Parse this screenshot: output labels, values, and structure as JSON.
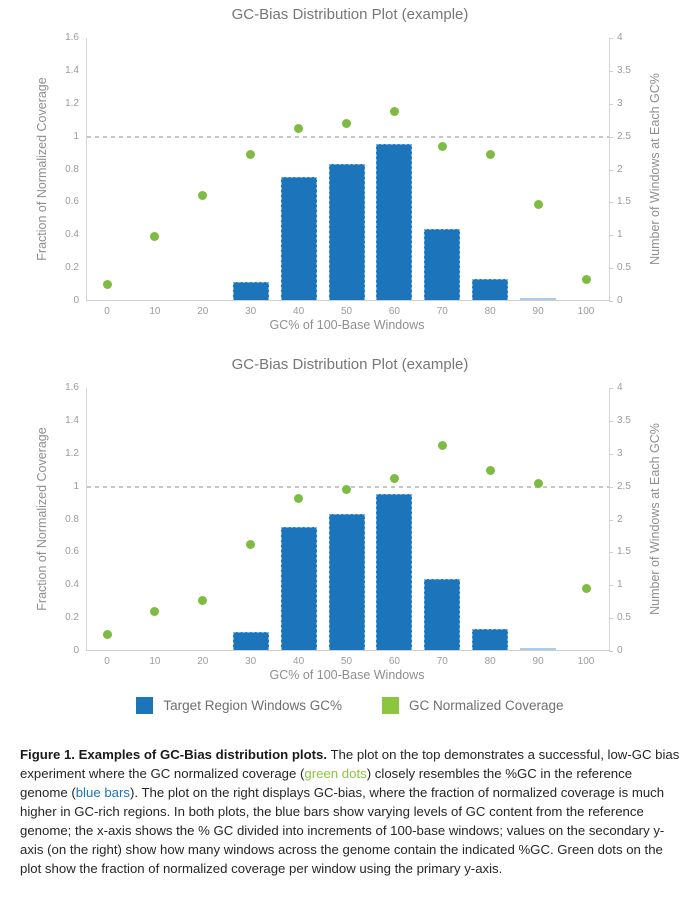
{
  "colors": {
    "bar_blue": "#1c74bb",
    "bar_light_blue": "#a9cdea",
    "bar_border": "#7fb3de",
    "dot_green": "#7ebb42",
    "legend_blue": "#1c74bb",
    "legend_green": "#8cc63f",
    "refline_gray": "#c6c6c6"
  },
  "chart_data": [
    {
      "type": "bar+scatter",
      "title": "GC-Bias Distribution Plot (example)",
      "xlabel": "GC% of 100-Base Windows",
      "ylabel_left": "Fraction of Normalized Coverage",
      "ylabel_right": "Number of Windows at Each GC%",
      "categories": [
        0,
        10,
        20,
        30,
        40,
        50,
        60,
        70,
        80,
        90,
        100
      ],
      "ylim_left": [
        0,
        1.6
      ],
      "ylim_right": [
        0,
        4
      ],
      "yticks_left": [
        "0",
        "0.2",
        "0.4",
        "0.6",
        "0.8",
        "1",
        "1.2",
        "1.4",
        "1.6"
      ],
      "yticks_right": [
        "0",
        "0.5",
        "1",
        "1.5",
        "2",
        "2.5",
        "3",
        "3.5",
        "4"
      ],
      "refline_left": 1.0,
      "grid": false,
      "series": [
        {
          "name": "Target Region Windows GC%",
          "type": "bar",
          "axis": "left",
          "values": [
            0,
            0,
            0,
            0.11,
            0.75,
            0.83,
            0.95,
            0.43,
            0.13,
            0.01,
            0
          ],
          "point_colors": {
            "9": "#a9cdea"
          }
        },
        {
          "name": "GC Normalized Coverage",
          "type": "scatter",
          "axis": "left",
          "values": [
            0.1,
            0.39,
            0.64,
            0.89,
            1.05,
            1.08,
            1.15,
            0.94,
            0.89,
            0.59,
            0.13
          ]
        }
      ]
    },
    {
      "type": "bar+scatter",
      "title": "GC-Bias Distribution Plot (example)",
      "xlabel": "GC% of 100-Base Windows",
      "ylabel_left": "Fraction of Normalized Coverage",
      "ylabel_right": "Number of Windows at Each GC%",
      "categories": [
        0,
        10,
        20,
        30,
        40,
        50,
        60,
        70,
        80,
        90,
        100
      ],
      "ylim_left": [
        0,
        1.6
      ],
      "ylim_right": [
        0,
        4
      ],
      "yticks_left": [
        "0",
        "0.2",
        "0.4",
        "0.6",
        "0.8",
        "1",
        "1.2",
        "1.4",
        "1.6"
      ],
      "yticks_right": [
        "0",
        "0.5",
        "1",
        "1.5",
        "2",
        "2.5",
        "3",
        "3.5",
        "4"
      ],
      "refline_left": 1.0,
      "grid": false,
      "series": [
        {
          "name": "Target Region Windows GC%",
          "type": "bar",
          "axis": "left",
          "values": [
            0,
            0,
            0,
            0.11,
            0.75,
            0.83,
            0.95,
            0.43,
            0.13,
            0.01,
            0
          ],
          "point_colors": {
            "9": "#a9cdea"
          }
        },
        {
          "name": "GC Normalized Coverage",
          "type": "scatter",
          "axis": "left",
          "values": [
            0.1,
            0.24,
            0.31,
            0.65,
            0.93,
            0.98,
            1.05,
            1.25,
            1.1,
            1.02,
            0.38
          ]
        }
      ]
    }
  ],
  "legend": {
    "position": "bottom-center",
    "items": [
      {
        "label": "Target Region Windows GC%",
        "color": "#1c74bb"
      },
      {
        "label": "GC Normalized Coverage",
        "color": "#8cc63f"
      }
    ]
  },
  "caption": {
    "segments": [
      {
        "style": "bold",
        "text": "Figure 1. Examples of GC-Bias distribution plots."
      },
      {
        "style": "normal",
        "text": " The plot on the top demonstrates a successful, low-GC bias experiment where the GC normalized coverage ("
      },
      {
        "style": "green",
        "text": "green dots"
      },
      {
        "style": "normal",
        "text": ") closely resembles the %GC in the reference genome ("
      },
      {
        "style": "blue",
        "text": "blue bars"
      },
      {
        "style": "normal",
        "text": "). The plot on the right displays GC-bias, where the fraction of normalized coverage is much higher in GC-rich regions. In both plots, the blue bars show varying levels of GC content from the reference genome; the x-axis shows the % GC divided into increments of 100-base windows; values on the secondary y-axis (on the right) show how many windows across the genome contain the indicated %GC. Green dots on the plot show the fraction of normalized coverage per window using the primary y-axis."
      }
    ]
  }
}
